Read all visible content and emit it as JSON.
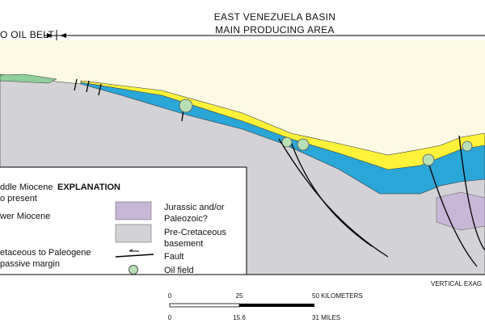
{
  "header": {
    "left_label": "O OIL BELT",
    "title_line1": "EAST VENEZUELA BASIN",
    "title_line2": "MAIN PRODUCING AREA"
  },
  "legend": {
    "title": "EXPLANATION",
    "items": [
      {
        "label_lines": [
          "ddle Miocene",
          "o present"
        ]
      },
      {
        "label_lines": [
          "wer Miocene"
        ]
      },
      {
        "label_lines": [
          "etaceous to Paleogene",
          "passive margin"
        ]
      },
      {
        "label_lines": [
          "Jurassic and/or",
          "Paleozoic?"
        ]
      },
      {
        "label_lines": [
          "Pre-Cretaceous",
          "basement"
        ]
      },
      {
        "label_lines": [
          "Fault"
        ]
      },
      {
        "label_lines": [
          "Oil field"
        ]
      }
    ]
  },
  "section": {
    "note": "VERTICAL EXAG"
  },
  "scale": {
    "km_ticks": [
      "0",
      "25",
      "50 KILOMETERS"
    ],
    "mile_ticks": [
      "0",
      "15.6",
      "31 MILES"
    ]
  }
}
